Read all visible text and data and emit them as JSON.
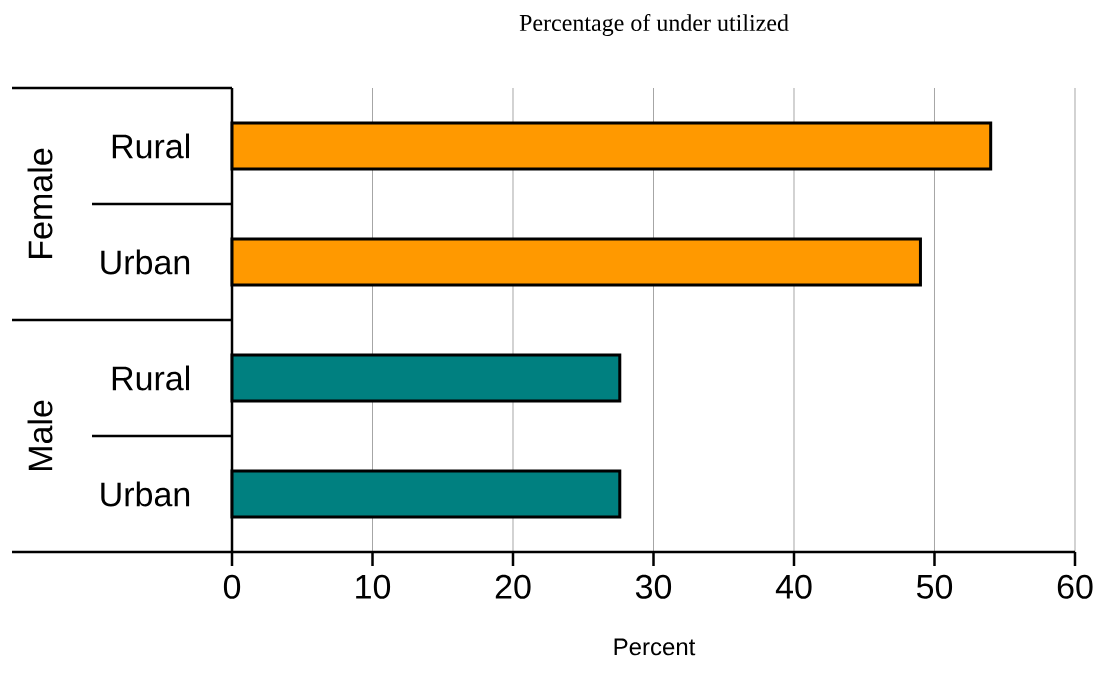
{
  "chart_data": {
    "type": "bar",
    "orientation": "horizontal",
    "title": "Percentage of under utilized",
    "xlabel": "Percent",
    "categories": [
      "Rural",
      "Urban",
      "Rural",
      "Urban"
    ],
    "values": [
      54,
      49,
      27.6,
      27.6
    ],
    "colors": [
      "#ff9900",
      "#ff9900",
      "#008080",
      "#008080"
    ],
    "annotations": [
      "Female",
      "Male"
    ],
    "xlim": [
      0,
      60
    ],
    "xticks": [
      0,
      10,
      20,
      30,
      40,
      50,
      60
    ],
    "grid": "x"
  }
}
